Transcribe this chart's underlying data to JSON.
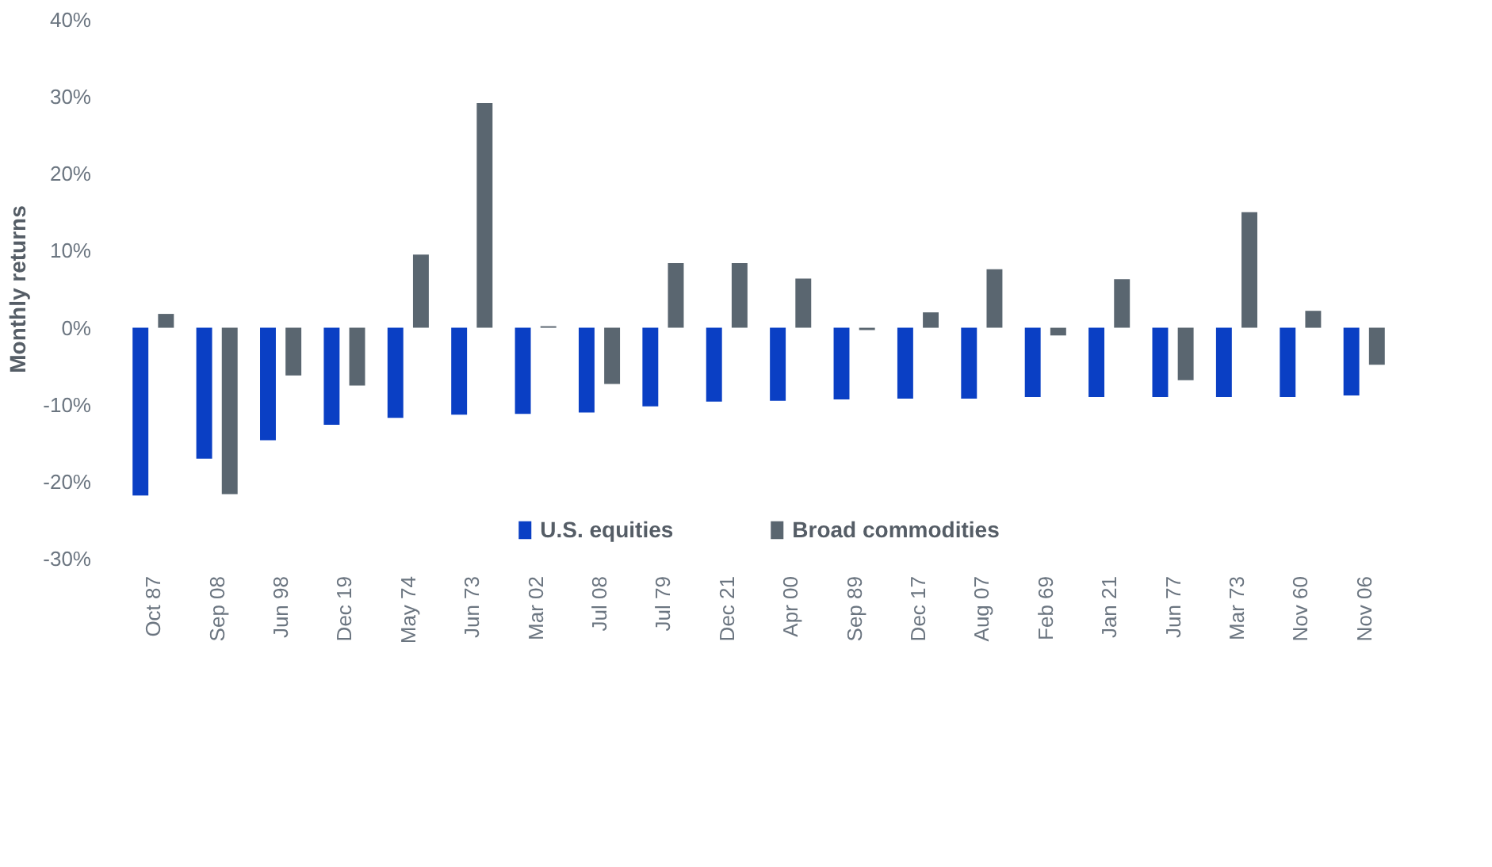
{
  "chart_data": {
    "type": "bar",
    "ylabel": "Monthly returns",
    "categories": [
      "Oct 87",
      "Sep 08",
      "Jun 98",
      "Dec 19",
      "May 74",
      "Jun 73",
      "Mar 02",
      "Jul 08",
      "Jul 79",
      "Dec 21",
      "Apr 00",
      "Sep 89",
      "Dec 17",
      "Aug 07",
      "Feb 69",
      "Jan 21",
      "Jun 77",
      "Mar 73",
      "Nov 60",
      "Nov 06"
    ],
    "series": [
      {
        "name": "U.S. equities",
        "color": "#0a3fc4",
        "values": [
          -21.8,
          -17.0,
          -14.6,
          -12.6,
          -11.7,
          -11.3,
          -11.2,
          -11.0,
          -10.2,
          -9.6,
          -9.5,
          -9.3,
          -9.2,
          -9.2,
          -9.0,
          -9.0,
          -9.0,
          -9.0,
          -9.0,
          -8.8
        ]
      },
      {
        "name": "Broad commodities",
        "color": "#5a6670",
        "values": [
          1.8,
          -21.6,
          -6.2,
          -7.5,
          9.5,
          29.2,
          0.2,
          -7.3,
          8.4,
          8.4,
          6.4,
          -0.3,
          2.0,
          7.6,
          -1.0,
          6.3,
          -6.8,
          15.0,
          2.2,
          -4.8
        ]
      }
    ],
    "ylim": [
      -30,
      40
    ],
    "yticks": [
      {
        "value": -30,
        "label": "-30%"
      },
      {
        "value": -20,
        "label": "-20%"
      },
      {
        "value": -10,
        "label": "-10%"
      },
      {
        "value": 0,
        "label": "0%"
      },
      {
        "value": 10,
        "label": "10%"
      },
      {
        "value": 20,
        "label": "20%"
      },
      {
        "value": 30,
        "label": "30%"
      },
      {
        "value": 40,
        "label": "40%"
      }
    ],
    "grid": false,
    "legend": "bottom"
  }
}
